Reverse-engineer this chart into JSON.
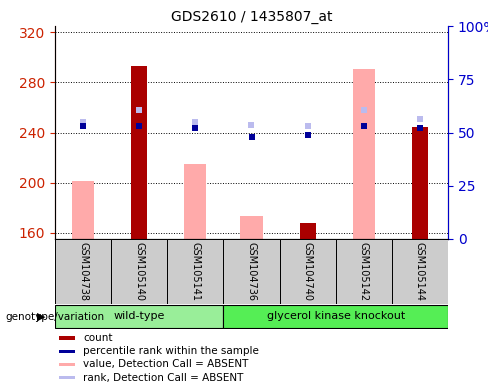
{
  "title": "GDS2610 / 1435807_at",
  "samples": [
    "GSM104738",
    "GSM105140",
    "GSM105141",
    "GSM104736",
    "GSM104740",
    "GSM105142",
    "GSM105144"
  ],
  "ylim_left": [
    155,
    325
  ],
  "ylim_right": [
    0,
    100
  ],
  "yticks_left": [
    160,
    200,
    240,
    280,
    320
  ],
  "yticks_right": [
    0,
    25,
    50,
    75,
    100
  ],
  "ytick_labels_right": [
    "0",
    "25",
    "50",
    "75",
    "100%"
  ],
  "count_values": [
    null,
    293,
    null,
    null,
    168,
    null,
    244
  ],
  "rank_values": [
    53,
    53,
    52,
    48,
    49,
    53,
    52
  ],
  "value_absent": [
    201,
    null,
    215,
    173,
    null,
    291,
    null
  ],
  "rank_absent": [
    248,
    258,
    248,
    246,
    245,
    258,
    251
  ],
  "color_count": "#aa0000",
  "color_rank": "#000099",
  "color_value_absent": "#ffaaaa",
  "color_rank_absent": "#bbbbee",
  "left_axis_color": "#cc2200",
  "right_axis_color": "#0000cc",
  "bg_gray": "#cccccc",
  "wt_color": "#99ee99",
  "gk_color": "#55ee55"
}
